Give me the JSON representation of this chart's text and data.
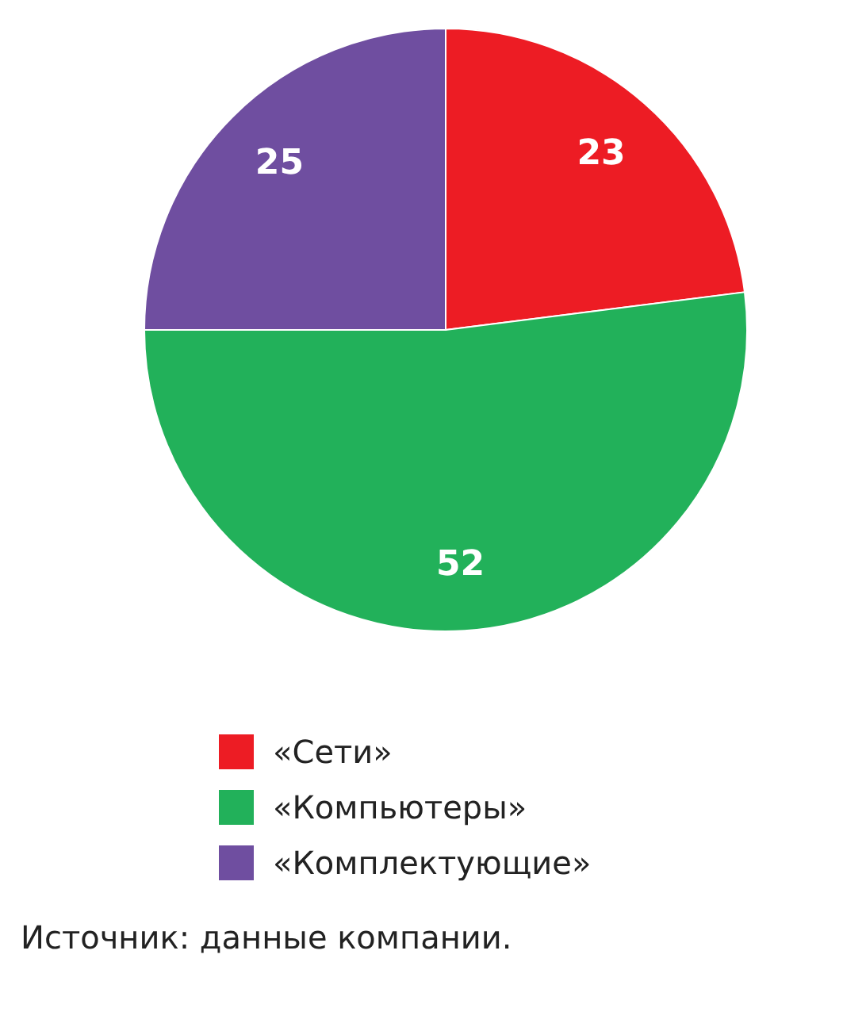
{
  "chart_data": {
    "type": "pie",
    "categories": [
      "«Сети»",
      "«Компьютеры»",
      "«Комплектующие»"
    ],
    "values": [
      23,
      52,
      25
    ],
    "colors": [
      "#ed1c24",
      "#22b15a",
      "#6f4ea0"
    ],
    "data_labels": true,
    "legend": "bottom",
    "annotations": [
      "Источник: данные компании."
    ]
  }
}
